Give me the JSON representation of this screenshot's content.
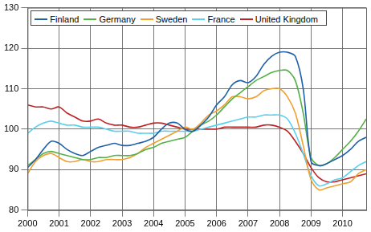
{
  "chart_data": {
    "type": "line",
    "x": [
      2000,
      2000.25,
      2000.5,
      2000.75,
      2001,
      2001.25,
      2001.5,
      2001.75,
      2002,
      2002.25,
      2002.5,
      2002.75,
      2003,
      2003.25,
      2003.5,
      2003.75,
      2004,
      2004.25,
      2004.5,
      2004.75,
      2005,
      2005.25,
      2005.5,
      2005.75,
      2006,
      2006.25,
      2006.5,
      2006.75,
      2007,
      2007.25,
      2007.5,
      2007.75,
      2008,
      2008.25,
      2008.5,
      2008.75,
      2009,
      2009.25,
      2009.5,
      2009.75,
      2010,
      2010.25,
      2010.5,
      2010.75
    ],
    "series": [
      {
        "name": "Finland",
        "color": "#2060a8",
        "values": [
          90.5,
          92.5,
          95,
          97,
          96.5,
          95,
          94,
          93.5,
          94.5,
          95.5,
          96,
          96.5,
          96,
          96,
          96.5,
          97,
          98,
          100,
          101.5,
          101.5,
          100,
          99.5,
          101,
          103,
          106,
          108,
          111,
          112,
          111.5,
          113,
          116,
          118,
          119,
          119,
          118,
          110,
          92,
          91,
          91.5,
          92.5,
          93.5,
          95,
          97,
          98
        ]
      },
      {
        "name": "Germany",
        "color": "#55b046",
        "values": [
          91,
          92.5,
          94,
          94.5,
          94,
          93.5,
          93,
          92.5,
          92.5,
          93,
          93,
          93.5,
          93.5,
          93.5,
          94,
          95,
          95.5,
          96.5,
          97,
          97.5,
          98,
          99.5,
          101,
          102,
          103.5,
          105.5,
          107.5,
          109,
          110.5,
          112,
          113,
          114,
          114.5,
          114.5,
          112,
          104,
          93,
          91,
          91.5,
          93,
          95,
          97,
          99.5,
          102.5
        ]
      },
      {
        "name": "Sweden",
        "color": "#f0a030",
        "values": [
          89,
          92,
          93.5,
          94,
          93,
          92,
          92,
          92.5,
          92,
          92,
          92.5,
          92.5,
          92.5,
          93,
          94,
          95.5,
          96.5,
          97.5,
          98.5,
          99.5,
          100.5,
          100,
          101.5,
          103.5,
          104.5,
          106,
          108,
          108,
          107.5,
          108,
          109.5,
          110,
          110,
          108,
          104,
          96,
          87.5,
          85,
          85.5,
          86,
          86.5,
          87,
          89,
          90
        ]
      },
      {
        "name": "France",
        "color": "#5ad0f0",
        "values": [
          99,
          100.5,
          101.5,
          102,
          101.5,
          101,
          101,
          100.5,
          100.5,
          100.5,
          100,
          99.5,
          99.5,
          99.5,
          99,
          99,
          99,
          99.5,
          99.5,
          99.5,
          99.5,
          99.5,
          100,
          100.5,
          101,
          101.5,
          102,
          102.5,
          103,
          103,
          103.5,
          103.5,
          103.5,
          102.5,
          99,
          94,
          88.5,
          86,
          86.5,
          87.5,
          88,
          89.5,
          91,
          92
        ]
      },
      {
        "name": "United Kingdom",
        "color": "#c02020",
        "values": [
          106,
          105.5,
          105.5,
          105,
          105.5,
          104,
          103,
          102,
          102,
          102.5,
          101.5,
          101,
          101,
          100.5,
          100.5,
          101,
          101.5,
          101.5,
          101,
          100.5,
          100,
          100,
          100,
          100,
          100,
          100.5,
          100.5,
          100.5,
          100.5,
          100.5,
          101,
          101,
          100.5,
          99.5,
          97,
          94,
          90.5,
          88,
          87,
          87,
          87.5,
          88,
          88.5,
          89
        ]
      }
    ],
    "xlim": [
      2000,
      2010.75
    ],
    "xticks": [
      2000,
      2001,
      2002,
      2003,
      2004,
      2005,
      2006,
      2007,
      2008,
      2009,
      2010
    ],
    "ylim": [
      80,
      130
    ],
    "yticks": [
      80,
      90,
      100,
      110,
      120,
      130
    ],
    "grid": true,
    "legend": "upper left"
  }
}
